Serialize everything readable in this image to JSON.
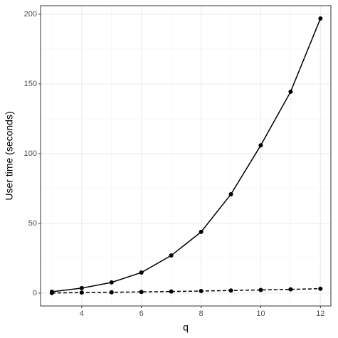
{
  "chart_data": {
    "type": "line",
    "xlabel": "q",
    "ylabel": "User time (seconds)",
    "x": [
      3,
      4,
      5,
      6,
      7,
      8,
      9,
      10,
      11,
      12
    ],
    "series": [
      {
        "color": "#000000",
        "linestyle": "solid",
        "values": [
          1.0,
          3.6,
          7.7,
          14.8,
          27.0,
          43.9,
          70.9,
          106.0,
          144.4,
          196.9
        ]
      },
      {
        "color": "#000000",
        "linestyle": "dashed",
        "values": [
          0.1,
          0.4,
          0.6,
          0.9,
          1.2,
          1.5,
          1.9,
          2.3,
          2.7,
          3.2
        ]
      }
    ],
    "xlim": [
      2.62,
      12.35
    ],
    "ylim": [
      -9.2,
      206.1
    ],
    "xticks": [
      4,
      6,
      8,
      10,
      12
    ],
    "yticks": [
      0,
      50,
      100,
      150,
      200
    ],
    "xminor": [
      3,
      5,
      7,
      9,
      11
    ],
    "yminor": [
      25,
      75,
      125,
      175
    ],
    "grid": true,
    "markers": true
  }
}
